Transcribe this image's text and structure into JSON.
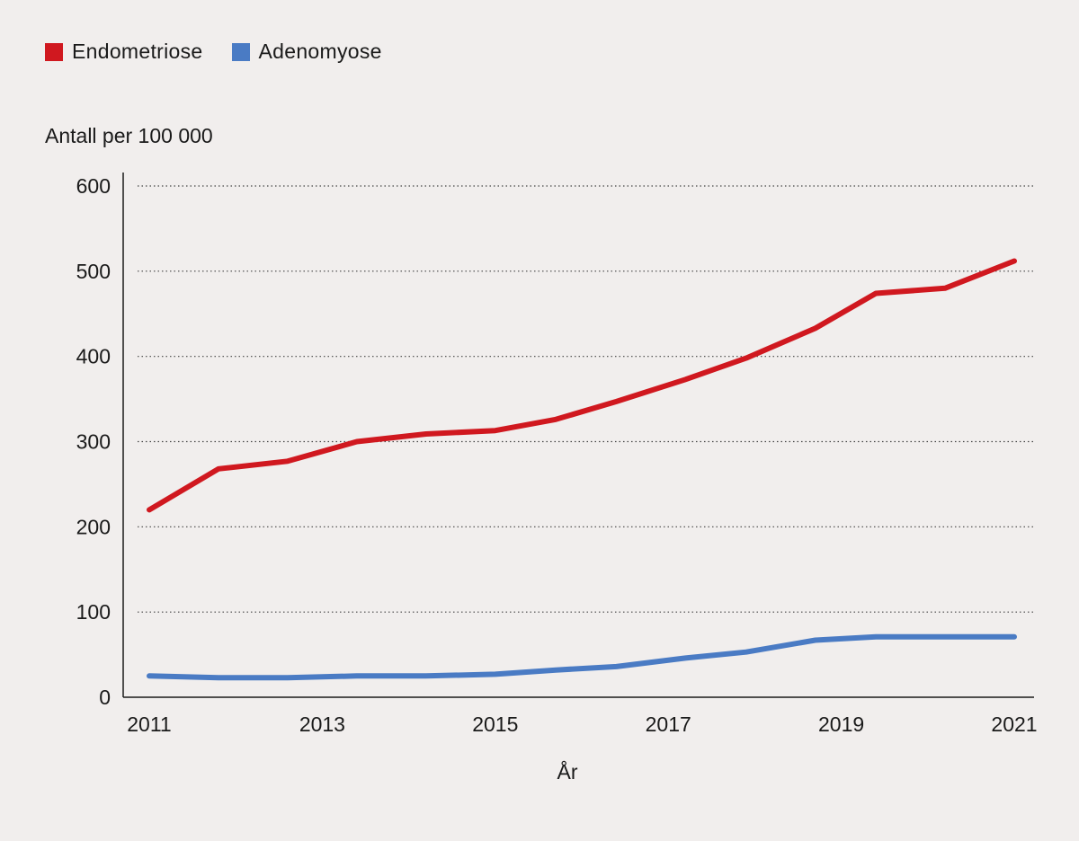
{
  "legend": [
    {
      "label": "Endometriose",
      "color": "#d0181f"
    },
    {
      "label": "Adenomyose",
      "color": "#4a7bc4"
    }
  ],
  "chart_data": {
    "type": "line",
    "ylabel": "Antall per 100 000",
    "xlabel": "År",
    "ylim": [
      0,
      600
    ],
    "yticks": [
      0,
      100,
      200,
      300,
      400,
      500,
      600
    ],
    "xlim": [
      2011,
      2021
    ],
    "xticks": [
      2011,
      2013,
      2015,
      2017,
      2019,
      2021
    ],
    "grid": "horizontal dotted",
    "legend_position": "top-left",
    "x": [
      2011,
      2011.8,
      2012.6,
      2013.4,
      2014.2,
      2015.0,
      2015.7,
      2016.4,
      2017.2,
      2017.9,
      2018.7,
      2019.4,
      2020.2,
      2021
    ],
    "series": [
      {
        "name": "Endometriose",
        "color": "#d0181f",
        "values": [
          220,
          268,
          277,
          300,
          309,
          313,
          326,
          347,
          373,
          398,
          433,
          474,
          480,
          512
        ]
      },
      {
        "name": "Adenomyose",
        "color": "#4a7bc4",
        "values": [
          25,
          23,
          23,
          25,
          25,
          27,
          32,
          36,
          46,
          53,
          67,
          71,
          71,
          71
        ]
      }
    ]
  }
}
